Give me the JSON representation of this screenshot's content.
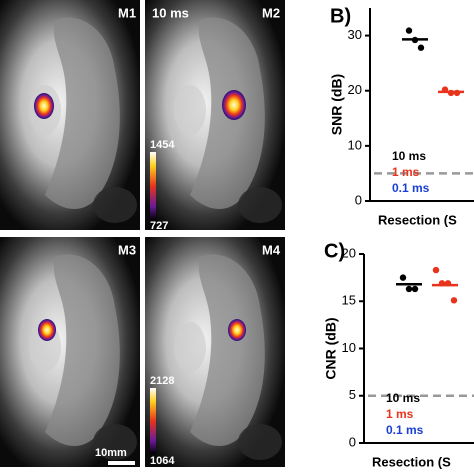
{
  "panels": [
    {
      "label": "M1"
    },
    {
      "label": "M2",
      "exposure": "10 ms",
      "colorbar": {
        "max": "1454",
        "min": "727"
      }
    },
    {
      "label": "M3"
    },
    {
      "label": "M4",
      "colorbar": {
        "max": "2128",
        "min": "1064"
      },
      "scale_bar": "10mm"
    }
  ],
  "chart_data": [
    {
      "type": "dot",
      "panel_label": "B)",
      "ylabel": "SNR (dB)",
      "xlabel": "Resection (S",
      "ylim": [
        0,
        35
      ],
      "yticks": [
        0,
        10,
        20,
        30
      ],
      "reference_line": 5,
      "series": [
        {
          "name": "10 ms",
          "color": "#000000",
          "values": [
            30.9,
            29.2,
            27.8
          ],
          "mean": 29.3
        },
        {
          "name": "1 ms",
          "color": "#e8341c",
          "values": [
            20.2,
            19.6,
            19.6
          ],
          "mean": 19.8
        },
        {
          "name": "0.1 ms",
          "color": "#1a3fd6"
        }
      ]
    },
    {
      "type": "dot",
      "panel_label": "C)",
      "ylabel": "CNR (dB)",
      "xlabel": "Resection (S",
      "ylim": [
        0,
        20
      ],
      "yticks": [
        0,
        5,
        10,
        15,
        20
      ],
      "reference_line": 5,
      "series": [
        {
          "name": "10 ms",
          "color": "#000000",
          "values": [
            17.5,
            16.3,
            16.3
          ],
          "mean": 16.8
        },
        {
          "name": "1 ms",
          "color": "#e8341c",
          "values": [
            18.3,
            16.9,
            16.9,
            15.1
          ],
          "mean": 16.7
        },
        {
          "name": "0.1 ms",
          "color": "#1a3fd6"
        }
      ]
    }
  ]
}
